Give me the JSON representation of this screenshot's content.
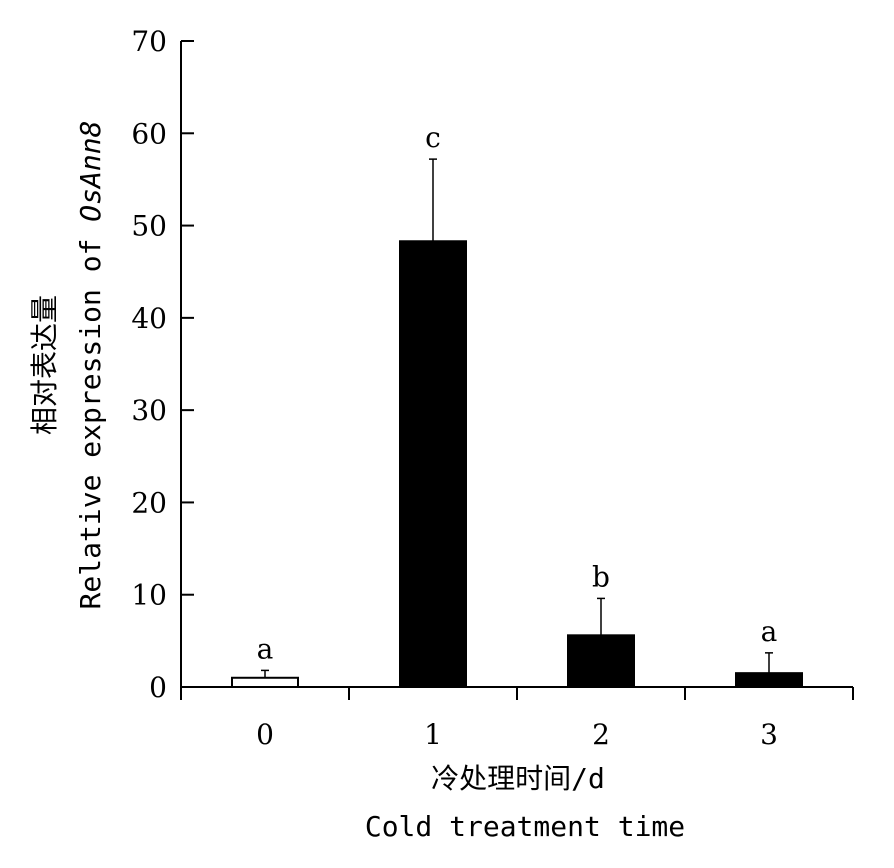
{
  "chart_data": {
    "type": "bar",
    "title": "",
    "categories": [
      "0",
      "1",
      "2",
      "3"
    ],
    "values": [
      1.0,
      48.3,
      5.6,
      1.5
    ],
    "error_upper": [
      1.8,
      57.2,
      9.6,
      3.7
    ],
    "significance_letters": [
      "a",
      "c",
      "b",
      "a"
    ],
    "bar_colors": [
      "#ffffff",
      "#000000",
      "#000000",
      "#000000"
    ],
    "ylim": [
      0,
      70
    ],
    "yticks": [
      0,
      10,
      20,
      30,
      40,
      50,
      60,
      70
    ],
    "ytick_labels": [
      "0",
      "10",
      "20",
      "30",
      "40",
      "50",
      "60",
      "70"
    ],
    "xlabel_zh": "冷处理时间/d",
    "xlabel_en": "Cold treatment time",
    "ylabel_zh": "相对表达量",
    "ylabel_en_prefix": "Relative expression of ",
    "ylabel_en_gene": "OsAnn8",
    "grid": false,
    "legend": "none"
  }
}
